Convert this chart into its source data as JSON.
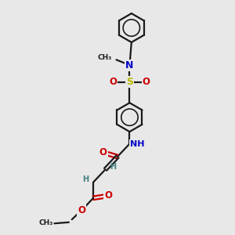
{
  "bg_color": "#e8e8e8",
  "bond_color": "#1a1a1a",
  "N_color": "#0000cc",
  "O_color": "#cc0000",
  "S_color": "#bbbb00",
  "H_color": "#408080",
  "C_color": "#1a1a1a",
  "lw": 1.6,
  "xlim": [
    0,
    10
  ],
  "ylim": [
    0,
    10
  ]
}
